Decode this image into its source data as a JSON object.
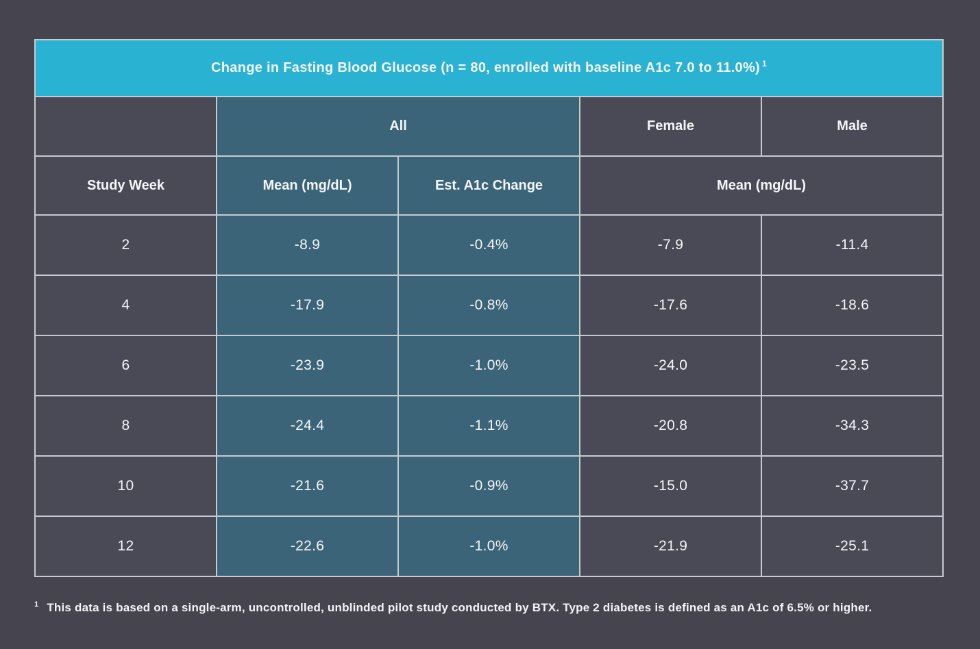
{
  "chart_data": {
    "type": "table",
    "title": "Change in Fasting Blood Glucose (n = 80, enrolled with baseline A1c 7.0 to 11.0%)",
    "title_footnote_marker": "1",
    "group_headers": {
      "all": "All",
      "female": "Female",
      "male": "Male"
    },
    "sub_headers": {
      "study_week": "Study Week",
      "all_mean": "Mean (mg/dL)",
      "all_a1c": "Est. A1c Change",
      "female_male_mean": "Mean (mg/dL)"
    },
    "columns": [
      "Study Week",
      "All Mean (mg/dL)",
      "All Est. A1c Change",
      "Female Mean (mg/dL)",
      "Male Mean (mg/dL)"
    ],
    "rows": [
      [
        "2",
        "-8.9",
        "-0.4%",
        "-7.9",
        "-11.4"
      ],
      [
        "4",
        "-17.9",
        "-0.8%",
        "-17.6",
        "-18.6"
      ],
      [
        "6",
        "-23.9",
        "-1.0%",
        "-24.0",
        "-23.5"
      ],
      [
        "8",
        "-24.4",
        "-1.1%",
        "-20.8",
        "-34.3"
      ],
      [
        "10",
        "-21.6",
        "-0.9%",
        "-15.0",
        "-37.7"
      ],
      [
        "12",
        "-22.6",
        "-1.0%",
        "-21.9",
        "-25.1"
      ]
    ]
  },
  "footnote": {
    "marker": "1",
    "text": "This data is based on a single-arm, uncontrolled, unblinded pilot study conducted by BTX. Type 2 diabetes is defined as an A1c of 6.5% or higher."
  },
  "colors": {
    "page_background": "#46444f",
    "title_bar": "#2ab2d3",
    "highlight_teal": "#3b6479",
    "dark_cell": "#4a4956",
    "border": "#c6cbd0",
    "text": "#f5f6f8"
  }
}
